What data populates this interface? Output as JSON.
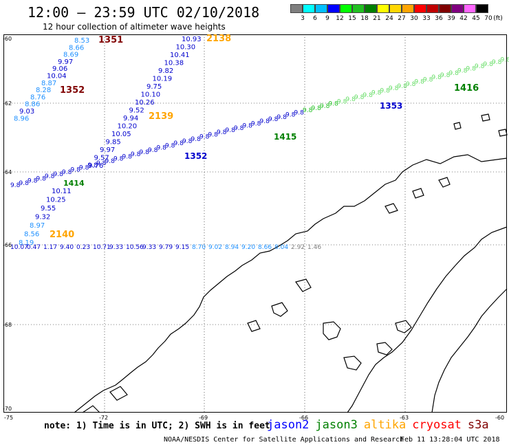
{
  "header": {
    "title": "12:00 — 23:59 UTC 02/10/2018",
    "subtitle": "12 hour collection of altimeter wave heights"
  },
  "legend": {
    "unit": "(ft)",
    "swatches": [
      {
        "label": "3",
        "color": "#7f7f7f"
      },
      {
        "label": "6",
        "color": "#00ffff"
      },
      {
        "label": "9",
        "color": "#00bfff"
      },
      {
        "label": "12",
        "color": "#0000ff"
      },
      {
        "label": "15",
        "color": "#00ff00"
      },
      {
        "label": "18",
        "color": "#22c022"
      },
      {
        "label": "21",
        "color": "#008000"
      },
      {
        "label": "24",
        "color": "#ffff00"
      },
      {
        "label": "27",
        "color": "#ffd700"
      },
      {
        "label": "30",
        "color": "#ffa500"
      },
      {
        "label": "33",
        "color": "#ff0000"
      },
      {
        "label": "36",
        "color": "#c00000"
      },
      {
        "label": "39",
        "color": "#800000"
      },
      {
        "label": "42",
        "color": "#800080"
      },
      {
        "label": "45",
        "color": "#ff66ff"
      },
      {
        "label": "70",
        "color": "#000000"
      }
    ]
  },
  "axes": {
    "lat_labels": [
      "-60",
      "-62",
      "-64",
      "-66",
      "-68",
      "-70"
    ],
    "lon_labels": [
      "-75",
      "-72",
      "-69",
      "-66",
      "-63",
      "-60"
    ]
  },
  "tracks": [
    {
      "time": "1351",
      "color": "#800000",
      "points": [
        {
          "v": "8.53",
          "c": "#1e90ff"
        },
        {
          "v": "8.66",
          "c": "#1e90ff"
        },
        {
          "v": "8.69",
          "c": "#1e90ff"
        },
        {
          "v": "9.97",
          "c": "#0000cd"
        },
        {
          "v": "9.06",
          "c": "#0000cd"
        },
        {
          "v": "10.04",
          "c": "#0000cd"
        },
        {
          "v": "8.87",
          "c": "#1e90ff"
        },
        {
          "v": "8.28",
          "c": "#1e90ff"
        },
        {
          "v": "8.76",
          "c": "#1e90ff"
        },
        {
          "v": "8.86",
          "c": "#1e90ff"
        },
        {
          "v": "9.03",
          "c": "#0000cd"
        },
        {
          "v": "8.96",
          "c": "#1e90ff"
        }
      ]
    },
    {
      "time": "1352",
      "color": "#800000"
    },
    {
      "time": "2138",
      "color": "#ffa500",
      "points": [
        {
          "v": "10.93"
        },
        {
          "v": "10.30"
        },
        {
          "v": "10.41"
        },
        {
          "v": "10.38"
        },
        {
          "v": "9.82"
        },
        {
          "v": "10.19"
        },
        {
          "v": "9.75"
        },
        {
          "v": "10.10"
        },
        {
          "v": "10.26"
        },
        {
          "v": "9.52"
        },
        {
          "v": "9.94"
        },
        {
          "v": "10.20"
        },
        {
          "v": "10.05"
        },
        {
          "v": "9.85"
        },
        {
          "v": "9.97"
        },
        {
          "v": "9.57"
        },
        {
          "v": "9.76"
        }
      ]
    },
    {
      "time": "2139",
      "color": "#ffa500"
    },
    {
      "time": "2140",
      "color": "#ffa500",
      "points": [
        {
          "v": "10.11"
        },
        {
          "v": "10.25"
        },
        {
          "v": "9.55"
        },
        {
          "v": "9.32"
        },
        {
          "v": "8.97"
        },
        {
          "v": "8.56"
        },
        {
          "v": "8.19"
        }
      ]
    },
    {
      "time": "1415",
      "color": "#008000"
    },
    {
      "time": "1416",
      "color": "#008000"
    },
    {
      "time": "1353",
      "color": "#0000cd"
    },
    {
      "time": "1352",
      "color": "#0000cd"
    },
    {
      "time": "1414",
      "color": "#008000"
    }
  ],
  "bottom_row": {
    "values": [
      "10.07",
      "0.47",
      "1.17",
      "9.40",
      "0.23",
      "10.71",
      "9.33",
      "10.56",
      "9.33",
      "9.79",
      "9.15",
      "8.70",
      "9.02",
      "8.94",
      "9.20",
      "8.66",
      "8.04",
      "2.92",
      "1.46"
    ]
  },
  "footer": {
    "note": "note: 1) Time is in UTC; 2) SWH is in feet",
    "satellites": [
      {
        "name": "jason2",
        "color": "#0000ff"
      },
      {
        "name": "jason3",
        "color": "#008000"
      },
      {
        "name": "altika",
        "color": "#ffa500"
      },
      {
        "name": "cryosat",
        "color": "#ff0000"
      },
      {
        "name": "s3a",
        "color": "#800000"
      }
    ],
    "credit": "NOAA/NESDIS Center for Satellite Applications and Research",
    "timestamp": "Feb 11 13:28:04 UTC 2018"
  }
}
